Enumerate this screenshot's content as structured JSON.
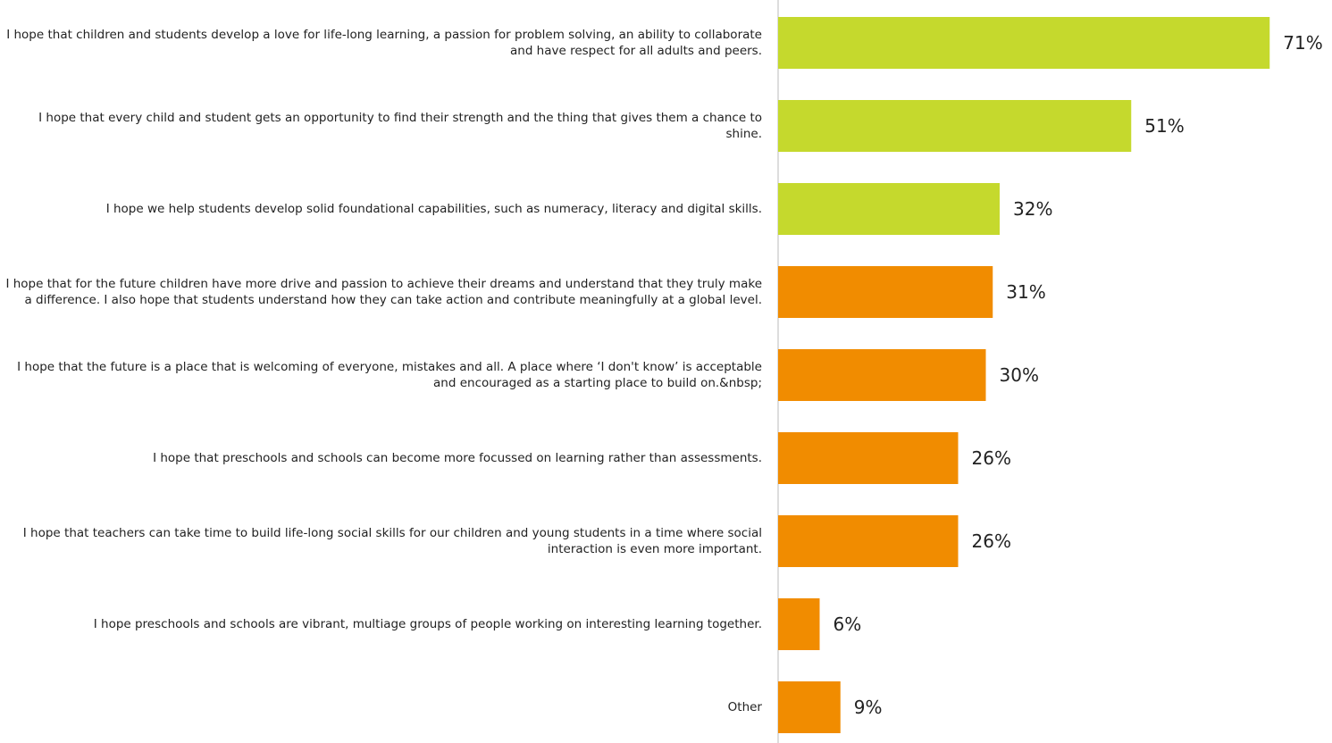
{
  "chart_data": {
    "type": "bar",
    "orientation": "horizontal",
    "categories": [
      "I hope that children and students develop a love for life-long learning, a passion for problem solving, an ability to collaborate and have respect for all adults and peers.",
      "I hope that every child and student gets an opportunity to find their strength and the thing that gives them a chance to shine.",
      "I hope we help students develop solid foundational capabilities, such as numeracy, literacy and digital skills.",
      "I hope that for the future children have more drive and passion to achieve their dreams and understand that they truly make a difference. I also hope that students understand how they can take action and contribute meaningfully at a global level.",
      "I hope that the future is a place that is welcoming of everyone, mistakes and all. A place where ‘I don't know’ is acceptable and encouraged as a starting place to build on.&nbsp;",
      "I hope that preschools and schools can become more focussed on learning rather than assessments.",
      "I hope that teachers can take time to build life-long social skills for our children and young students in a time where social interaction is even more important.",
      "I hope preschools and schools are vibrant, multiage groups of people working on interesting learning together.",
      "Other"
    ],
    "values": [
      71,
      51,
      32,
      31,
      30,
      26,
      26,
      6,
      9
    ],
    "value_labels": [
      "71%",
      "51%",
      "32%",
      "31%",
      "30%",
      "26%",
      "26%",
      "6%",
      "9%"
    ],
    "colors": [
      "#c5d92d",
      "#c5d92d",
      "#c5d92d",
      "#f18c00",
      "#f18c00",
      "#f18c00",
      "#f18c00",
      "#f18c00",
      "#f18c00"
    ]
  }
}
